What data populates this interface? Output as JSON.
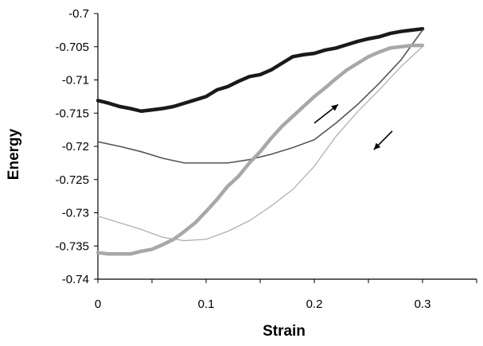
{
  "chart_data": {
    "type": "line",
    "title": "",
    "xlabel": "Strain",
    "ylabel": "Energy",
    "xlim": [
      0,
      0.35
    ],
    "ylim": [
      -0.74,
      -0.7
    ],
    "x_ticks": [
      0,
      0.1,
      0.2,
      0.3
    ],
    "x_tick_labels": [
      "0",
      "0.1",
      "0.2",
      "0.3"
    ],
    "y_ticks": [
      -0.7,
      -0.705,
      -0.71,
      -0.715,
      -0.72,
      -0.725,
      -0.73,
      -0.735,
      -0.74
    ],
    "y_tick_labels": [
      "-0.7",
      "-0.705",
      "-0.71",
      "-0.715",
      "-0.72",
      "-0.725",
      "-0.73",
      "-0.735",
      "-0.74"
    ],
    "grid": false,
    "legend": "none",
    "series": [
      {
        "color": "#1a1a1a",
        "line_style": "thick",
        "points": [
          [
            0,
            -0.7131
          ],
          [
            0.01,
            -0.7135
          ],
          [
            0.02,
            -0.714
          ],
          [
            0.03,
            -0.7143
          ],
          [
            0.04,
            -0.7147
          ],
          [
            0.05,
            -0.7145
          ],
          [
            0.06,
            -0.7143
          ],
          [
            0.07,
            -0.714
          ],
          [
            0.08,
            -0.7135
          ],
          [
            0.09,
            -0.713
          ],
          [
            0.1,
            -0.7125
          ],
          [
            0.11,
            -0.7115
          ],
          [
            0.12,
            -0.711
          ],
          [
            0.13,
            -0.7102
          ],
          [
            0.14,
            -0.7095
          ],
          [
            0.15,
            -0.7092
          ],
          [
            0.16,
            -0.7085
          ],
          [
            0.17,
            -0.7075
          ],
          [
            0.18,
            -0.7065
          ],
          [
            0.19,
            -0.7062
          ],
          [
            0.2,
            -0.706
          ],
          [
            0.21,
            -0.7055
          ],
          [
            0.22,
            -0.7052
          ],
          [
            0.23,
            -0.7047
          ],
          [
            0.24,
            -0.7042
          ],
          [
            0.25,
            -0.7038
          ],
          [
            0.26,
            -0.7035
          ],
          [
            0.27,
            -0.703
          ],
          [
            0.28,
            -0.7027
          ],
          [
            0.29,
            -0.7025
          ],
          [
            0.3,
            -0.7023
          ]
        ]
      },
      {
        "color": "#555555",
        "line_style": "medium",
        "points": [
          [
            0,
            -0.7193
          ],
          [
            0.02,
            -0.72
          ],
          [
            0.04,
            -0.7208
          ],
          [
            0.06,
            -0.7218
          ],
          [
            0.08,
            -0.7225
          ],
          [
            0.1,
            -0.7225
          ],
          [
            0.12,
            -0.7225
          ],
          [
            0.14,
            -0.722
          ],
          [
            0.16,
            -0.7212
          ],
          [
            0.18,
            -0.7202
          ],
          [
            0.2,
            -0.719
          ],
          [
            0.22,
            -0.7165
          ],
          [
            0.24,
            -0.7137
          ],
          [
            0.26,
            -0.7105
          ],
          [
            0.28,
            -0.707
          ],
          [
            0.3,
            -0.7025
          ]
        ]
      },
      {
        "color": "#a8a8a8",
        "line_style": "thick",
        "points": [
          [
            0,
            -0.736
          ],
          [
            0.01,
            -0.7362
          ],
          [
            0.02,
            -0.7362
          ],
          [
            0.03,
            -0.7362
          ],
          [
            0.04,
            -0.7358
          ],
          [
            0.05,
            -0.7355
          ],
          [
            0.06,
            -0.7348
          ],
          [
            0.07,
            -0.734
          ],
          [
            0.08,
            -0.7328
          ],
          [
            0.09,
            -0.7315
          ],
          [
            0.1,
            -0.7298
          ],
          [
            0.11,
            -0.728
          ],
          [
            0.12,
            -0.726
          ],
          [
            0.13,
            -0.7245
          ],
          [
            0.14,
            -0.7225
          ],
          [
            0.15,
            -0.7208
          ],
          [
            0.16,
            -0.7188
          ],
          [
            0.17,
            -0.717
          ],
          [
            0.18,
            -0.7155
          ],
          [
            0.19,
            -0.714
          ],
          [
            0.2,
            -0.7125
          ],
          [
            0.21,
            -0.7112
          ],
          [
            0.22,
            -0.7098
          ],
          [
            0.23,
            -0.7085
          ],
          [
            0.24,
            -0.7075
          ],
          [
            0.25,
            -0.7065
          ],
          [
            0.26,
            -0.7058
          ],
          [
            0.27,
            -0.7052
          ],
          [
            0.28,
            -0.705
          ],
          [
            0.29,
            -0.7048
          ],
          [
            0.3,
            -0.7048
          ]
        ]
      },
      {
        "color": "#b0b0b0",
        "line_style": "thin",
        "points": [
          [
            0,
            -0.7305
          ],
          [
            0.02,
            -0.7315
          ],
          [
            0.04,
            -0.7325
          ],
          [
            0.06,
            -0.7337
          ],
          [
            0.08,
            -0.7342
          ],
          [
            0.1,
            -0.734
          ],
          [
            0.12,
            -0.7328
          ],
          [
            0.14,
            -0.7312
          ],
          [
            0.16,
            -0.729
          ],
          [
            0.18,
            -0.7265
          ],
          [
            0.2,
            -0.723
          ],
          [
            0.22,
            -0.7185
          ],
          [
            0.24,
            -0.7148
          ],
          [
            0.26,
            -0.7115
          ],
          [
            0.28,
            -0.708
          ],
          [
            0.3,
            -0.705
          ]
        ]
      }
    ],
    "annotations": [
      {
        "type": "arrow",
        "direction": "up-right",
        "from": [
          0.2,
          -0.7165
        ],
        "to": [
          0.222,
          -0.7137
        ]
      },
      {
        "type": "arrow",
        "direction": "down-left",
        "from": [
          0.272,
          -0.7177
        ],
        "to": [
          0.255,
          -0.7205
        ]
      }
    ]
  }
}
